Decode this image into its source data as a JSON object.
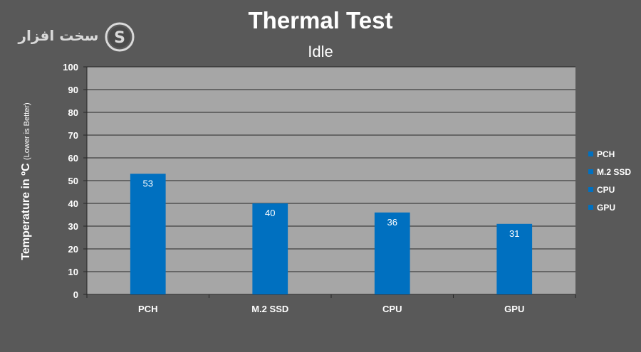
{
  "logo": {
    "text": "سخت افزار",
    "mark": "S"
  },
  "chart_data": {
    "type": "bar",
    "title": "Thermal Test",
    "subtitle": "Idle",
    "ylabel": "Temperature in ºC",
    "ylabel_note": "(Lower is Better)",
    "xlabel": "",
    "categories": [
      "PCH",
      "M.2 SSD",
      "CPU",
      "GPU"
    ],
    "series": [
      {
        "values": [
          53,
          40,
          36,
          31
        ]
      }
    ],
    "ylim": [
      0,
      100
    ],
    "yticks": [
      0,
      10,
      20,
      30,
      40,
      50,
      60,
      70,
      80,
      90,
      100
    ],
    "grid": true,
    "legend": {
      "placement": "right",
      "entries": [
        "PCH",
        "M.2 SSD",
        "CPU",
        "GPU"
      ]
    },
    "colors": {
      "background": "#595959",
      "plot_area": "#a6a6a6",
      "bar": "#0070c0",
      "gridline": "#262626",
      "text": "#ffffff"
    }
  }
}
